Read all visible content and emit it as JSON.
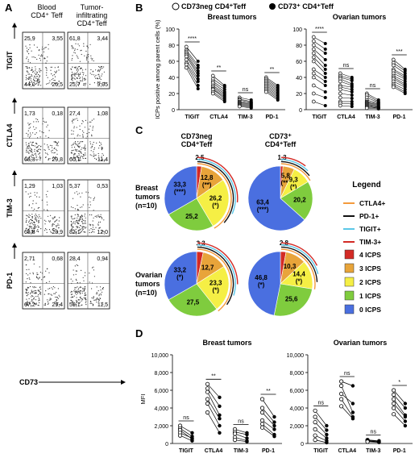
{
  "panels": {
    "A": "A",
    "B": "B",
    "C": "C",
    "D": "D"
  },
  "panel_a": {
    "col1": "Blood\nCD4⁺ Teff",
    "col2": "Tumor-\ninfiltrating\nCD4⁺Teff",
    "rows": [
      {
        "marker": "TIGIT",
        "blood": [
          "25,9",
          "3,55",
          "44,0",
          "26,5"
        ],
        "til": [
          "61,8",
          "3,44",
          "25,7",
          "9,05"
        ]
      },
      {
        "marker": "CTLA4",
        "blood": [
          "1,73",
          "0,18",
          "68,3",
          "29,8"
        ],
        "til": [
          "27,4",
          "1,08",
          "60,1",
          "11,4"
        ]
      },
      {
        "marker": "TIM-3",
        "blood": [
          "1,29",
          "1,03",
          "68,8",
          "28,9"
        ],
        "til": [
          "5,37",
          "0,53",
          "82,1",
          "12,0"
        ]
      },
      {
        "marker": "PD-1",
        "blood": [
          "2,71",
          "0,68",
          "67,2",
          "29,4"
        ],
        "til": [
          "28,4",
          "0,94",
          "59,1",
          "11,5"
        ]
      }
    ],
    "xlabel": "CD73"
  },
  "legend_b": {
    "neg": "CD73neg CD4⁺Teff",
    "pos": "CD73⁺ CD4⁺Teff"
  },
  "chart_data": [
    {
      "type": "scatter",
      "panel": "B",
      "title": "Breast tumors",
      "ylabel": "ICPs positive among parent cells (%)",
      "ylim": [
        0,
        100
      ],
      "yticks": [
        0,
        20,
        40,
        60,
        80,
        100
      ],
      "categories": [
        "TIGIT",
        "CTLA4",
        "TIM-3",
        "PD-1"
      ],
      "significance": [
        "****",
        "**",
        "ns",
        "**"
      ],
      "series": [
        {
          "name": "CD73neg CD4⁺Teff",
          "values": [
            [
              78,
              74,
              72,
              70,
              68,
              66,
              62,
              58,
              56,
              52
            ],
            [
              42,
              38,
              35,
              33,
              30,
              28,
              26,
              25,
              22,
              20
            ],
            [
              15,
              13,
              12,
              10,
              9,
              8,
              7,
              6,
              5,
              4
            ],
            [
              40,
              38,
              36,
              34,
              32,
              30,
              28,
              26,
              24,
              22
            ]
          ]
        },
        {
          "name": "CD73⁺ CD4⁺Teff",
          "values": [
            [
              60,
              55,
              52,
              48,
              45,
              42,
              38,
              35,
              30,
              26
            ],
            [
              30,
              28,
              25,
              22,
              20,
              18,
              16,
              14,
              12,
              10
            ],
            [
              12,
              10,
              9,
              8,
              7,
              6,
              5,
              4,
              3,
              2
            ],
            [
              30,
              28,
              26,
              24,
              22,
              20,
              18,
              16,
              14,
              12
            ]
          ]
        }
      ]
    },
    {
      "type": "scatter",
      "panel": "B",
      "title": "Ovarian tumors",
      "ylim": [
        0,
        100
      ],
      "yticks": [
        0,
        20,
        40,
        60,
        80,
        100
      ],
      "categories": [
        "TIGIT",
        "CTLA4",
        "TIM-3",
        "PD-1"
      ],
      "significance": [
        "****",
        "ns",
        "ns",
        "***"
      ],
      "series": [
        {
          "name": "CD73neg CD4⁺Teff",
          "values": [
            [
              90,
              85,
              80,
              75,
              70,
              65,
              60,
              50,
              45,
              40,
              30,
              20,
              10
            ],
            [
              45,
              42,
              40,
              38,
              35,
              30,
              28,
              25,
              20,
              15,
              10,
              8,
              5
            ],
            [
              20,
              18,
              15,
              12,
              10,
              9,
              8,
              7,
              6,
              5,
              4,
              3,
              2
            ],
            [
              62,
              58,
              55,
              50,
              48,
              45,
              42,
              40,
              38,
              35,
              32,
              30,
              28
            ]
          ]
        },
        {
          "name": "CD73⁺ CD4⁺Teff",
          "values": [
            [
              82,
              75,
              70,
              62,
              55,
              50,
              45,
              40,
              35,
              30,
              22,
              15,
              5
            ],
            [
              40,
              38,
              36,
              32,
              30,
              28,
              25,
              22,
              18,
              14,
              10,
              7,
              4
            ],
            [
              12,
              10,
              9,
              8,
              7,
              6,
              5,
              4,
              3,
              3,
              2,
              2,
              1
            ],
            [
              50,
              48,
              45,
              42,
              40,
              38,
              35,
              32,
              30,
              28,
              25,
              22,
              20
            ]
          ]
        }
      ]
    },
    {
      "type": "pie",
      "panel": "C",
      "group": "Breast tumors (n=10)",
      "column": "CD73neg CD4⁺Teff",
      "categories": [
        "4 ICPS",
        "3 ICPS",
        "2 ICPS",
        "1 ICPS",
        "0 ICPS"
      ],
      "values": [
        2.5,
        12.8,
        26.2,
        25.2,
        33.3
      ],
      "labels": [
        "2,5",
        "12,8\n(**)",
        "26,2\n(*)",
        "25,2",
        "33,3\n(***)"
      ]
    },
    {
      "type": "pie",
      "panel": "C",
      "group": "Breast tumors (n=10)",
      "column": "CD73⁺ CD4⁺Teff",
      "categories": [
        "4 ICPS",
        "3 ICPS",
        "2 ICPS",
        "1 ICPS",
        "0 ICPS"
      ],
      "values": [
        1.3,
        5.8,
        9.3,
        20.2,
        63.4
      ],
      "labels": [
        "1,3",
        "5,8\n(**)",
        "9,3\n(*)",
        "20,2",
        "63,4\n(***)"
      ]
    },
    {
      "type": "pie",
      "panel": "C",
      "group": "Ovarian tumors (n=10)",
      "column": "CD73neg CD4⁺Teff",
      "categories": [
        "4 ICPS",
        "3 ICPS",
        "2 ICPS",
        "1 ICPS",
        "0 ICPS"
      ],
      "values": [
        3.3,
        12.7,
        23.3,
        27.5,
        33.2
      ],
      "labels": [
        "3,3",
        "12,7",
        "23,3\n(*)",
        "27,5",
        "33,2\n(*)"
      ]
    },
    {
      "type": "pie",
      "panel": "C",
      "group": "Ovarian tumors (n=10)",
      "column": "CD73⁺ CD4⁺Teff",
      "categories": [
        "4 ICPS",
        "3 ICPS",
        "2 ICPS",
        "1 ICPS",
        "0 ICPS"
      ],
      "values": [
        2.8,
        10.3,
        14.4,
        25.6,
        46.8
      ],
      "labels": [
        "2,8",
        "10,3",
        "14,4\n(*)",
        "25,6",
        "46,8\n(*)"
      ]
    },
    {
      "type": "scatter",
      "panel": "D",
      "title": "Breast tumors",
      "ylabel": "MFI",
      "ylim": [
        0,
        10000
      ],
      "yticks": [
        "0",
        "2,000",
        "4,000",
        "6,000",
        "8,000",
        "10,000"
      ],
      "categories": [
        "TIGIT",
        "CTLA4",
        "TIM-3",
        "PD-1"
      ],
      "significance": [
        "ns",
        "**",
        "ns",
        "**"
      ],
      "pairs": [
        [
          [
            2000,
            1200
          ],
          [
            1700,
            800
          ],
          [
            1500,
            500
          ],
          [
            1200,
            600
          ],
          [
            900,
            300
          ]
        ],
        [
          [
            6700,
            5200
          ],
          [
            6200,
            4200
          ],
          [
            5800,
            3200
          ],
          [
            5000,
            2800
          ],
          [
            4500,
            2000
          ],
          [
            3500,
            1200
          ]
        ],
        [
          [
            1600,
            1200
          ],
          [
            1300,
            1000
          ],
          [
            1100,
            600
          ],
          [
            700,
            300
          ],
          [
            400,
            200
          ]
        ],
        [
          [
            5000,
            3000
          ],
          [
            4000,
            2400
          ],
          [
            3500,
            2000
          ],
          [
            2600,
            1600
          ],
          [
            2200,
            1000
          ],
          [
            1800,
            800
          ]
        ]
      ]
    },
    {
      "type": "scatter",
      "panel": "D",
      "title": "Ovarian tumors",
      "ylim": [
        0,
        10000
      ],
      "yticks": [
        "0",
        "2,000",
        "4,000",
        "6,000",
        "8,000",
        "10,000"
      ],
      "categories": [
        "TIGIT",
        "CTLA4",
        "TIM-3",
        "PD-1"
      ],
      "significance": [
        "ns",
        "ns",
        "ns",
        "*"
      ],
      "pairs": [
        [
          [
            3700,
            2000
          ],
          [
            3000,
            1500
          ],
          [
            2400,
            1000
          ],
          [
            1600,
            600
          ],
          [
            900,
            300
          ],
          [
            400,
            100
          ]
        ],
        [
          [
            7000,
            6500
          ],
          [
            6500,
            3500
          ],
          [
            5600,
            4500
          ],
          [
            5000,
            3000
          ],
          [
            4200,
            2800
          ]
        ],
        [
          [
            400,
            300
          ],
          [
            350,
            250
          ],
          [
            300,
            200
          ],
          [
            250,
            150
          ],
          [
            200,
            120
          ]
        ],
        [
          [
            6000,
            4500
          ],
          [
            5500,
            4000
          ],
          [
            5000,
            3200
          ],
          [
            4500,
            3000
          ],
          [
            4000,
            2500
          ],
          [
            3300,
            2000
          ]
        ]
      ]
    }
  ],
  "legend_c": {
    "title": "Legend",
    "lines": [
      {
        "label": "CTLA4+",
        "color": "#f39a3c"
      },
      {
        "label": "PD-1+",
        "color": "#111111"
      },
      {
        "label": "TIGIT+",
        "color": "#5bc7e8"
      },
      {
        "label": "TIM-3+",
        "color": "#d32a25"
      }
    ],
    "boxes": [
      {
        "label": "4 ICPS",
        "color": "#d32a25"
      },
      {
        "label": "3 ICPS",
        "color": "#e8a43a"
      },
      {
        "label": "2 ICPS",
        "color": "#f5ef45"
      },
      {
        "label": "1 ICPS",
        "color": "#7fcc3e"
      },
      {
        "label": "0 ICPS",
        "color": "#4a6fe0"
      }
    ]
  },
  "panel_c_labels": {
    "col1": "CD73neg\nCD4⁺Teff",
    "col2": "CD73⁺\nCD4⁺Teff",
    "row1": "Breast\ntumors\n(n=10)",
    "row2": "Ovarian\ntumors\n(n=10)"
  }
}
